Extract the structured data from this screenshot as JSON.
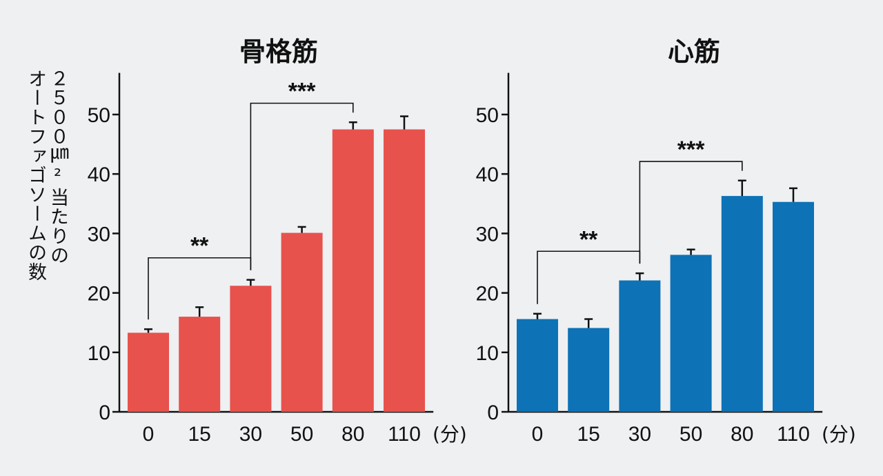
{
  "y_label_lines": [
    "２５００㎛²当たりの",
    "オートファゴソームの数"
  ],
  "unit_label": "(分)",
  "colors": {
    "skeletal": "#e8524c",
    "cardiac": "#0d72b6",
    "axis": "#111111"
  },
  "chart_data": [
    {
      "type": "bar",
      "title": "骨格筋",
      "categories": [
        "0",
        "15",
        "30",
        "50",
        "80",
        "110"
      ],
      "values": [
        13.3,
        16.0,
        21.2,
        30.1,
        47.5,
        47.5
      ],
      "errors": [
        0.6,
        1.6,
        1.0,
        1.0,
        1.2,
        2.2
      ],
      "ylim": [
        0,
        57
      ],
      "yticks": [
        0,
        10,
        20,
        30,
        40,
        50
      ],
      "significance": [
        {
          "from": "0",
          "to": "30",
          "label": "**"
        },
        {
          "from": "30",
          "to": "80",
          "label": "***"
        }
      ]
    },
    {
      "type": "bar",
      "title": "心筋",
      "categories": [
        "0",
        "15",
        "30",
        "50",
        "80",
        "110"
      ],
      "values": [
        15.6,
        14.1,
        22.1,
        26.4,
        36.3,
        35.3
      ],
      "errors": [
        0.9,
        1.5,
        1.2,
        0.9,
        2.6,
        2.3
      ],
      "ylim": [
        0,
        57
      ],
      "yticks": [
        0,
        10,
        20,
        30,
        40,
        50
      ],
      "significance": [
        {
          "from": "0",
          "to": "30",
          "label": "**"
        },
        {
          "from": "30",
          "to": "80",
          "label": "***"
        }
      ]
    }
  ]
}
